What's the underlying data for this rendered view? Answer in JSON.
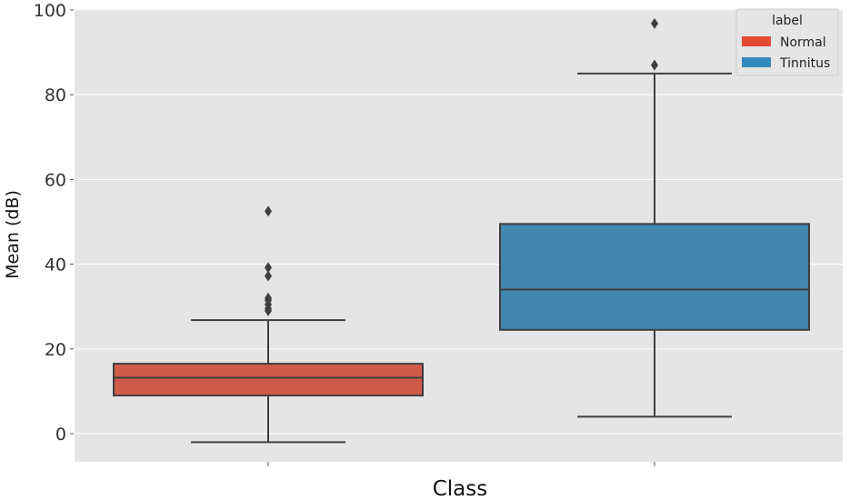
{
  "chart_data": {
    "type": "box",
    "xlabel": "Class",
    "ylabel": "Mean (dB)",
    "ylim": [
      -7,
      101
    ],
    "yticks": [
      0,
      20,
      40,
      60,
      80,
      100
    ],
    "grid": true,
    "legend": {
      "title": "label",
      "position": "top-right",
      "entries": [
        "Normal",
        "Tinnitus"
      ]
    },
    "series": [
      {
        "name": "Normal",
        "color": "#E24A33",
        "fill": "#D05B4A",
        "whisker_low": -2,
        "q1": 9,
        "median": 13.2,
        "q3": 16.5,
        "whisker_high": 26.8,
        "outliers": [
          29,
          29.5,
          30.5,
          31.5,
          32,
          37.2,
          39.2,
          52.5
        ]
      },
      {
        "name": "Tinnitus",
        "color": "#348ABD",
        "fill": "#4187AF",
        "whisker_low": 4,
        "q1": 24.5,
        "median": 34,
        "q3": 49.5,
        "whisker_high": 85,
        "outliers": [
          87,
          96.8
        ]
      }
    ]
  }
}
